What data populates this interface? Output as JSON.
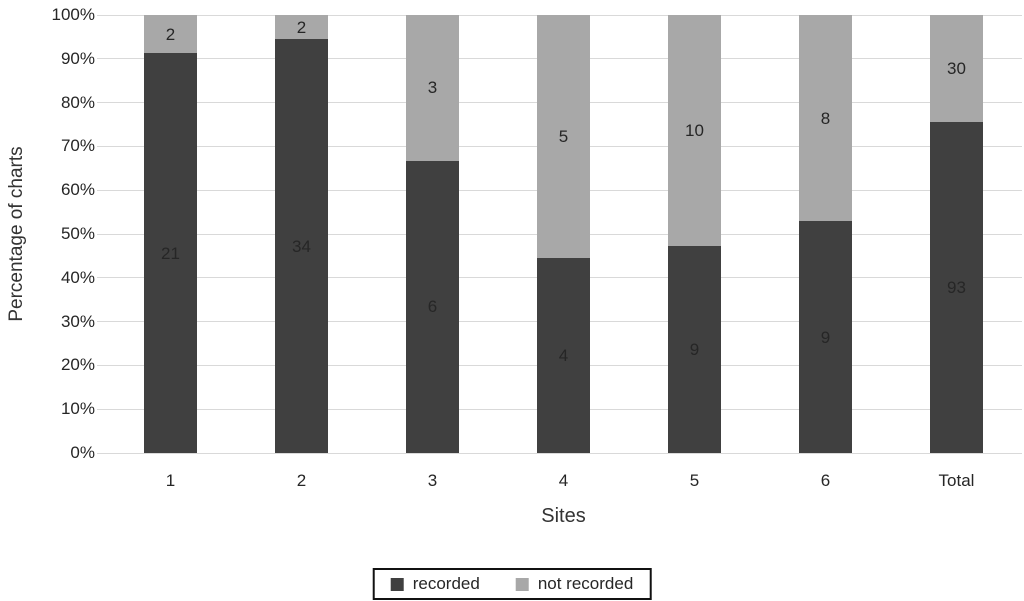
{
  "chart_data": {
    "type": "bar",
    "variant": "100% stacked column",
    "title": "",
    "xlabel": "Sites",
    "ylabel": "Percentage of charts",
    "categories": [
      "1",
      "2",
      "3",
      "4",
      "5",
      "6",
      "Total"
    ],
    "series": [
      {
        "name": "recorded",
        "color": "#404040",
        "values": [
          21,
          34,
          6,
          4,
          9,
          9,
          93
        ]
      },
      {
        "name": "not recorded",
        "color": "#a8a8a8",
        "values": [
          2,
          2,
          3,
          5,
          10,
          8,
          30
        ]
      }
    ],
    "recorded_percent": [
      91.3,
      94.4,
      66.7,
      44.4,
      47.4,
      52.9,
      75.6
    ],
    "ylim": [
      0,
      100
    ],
    "y_tick_labels": [
      "0%",
      "10%",
      "20%",
      "30%",
      "40%",
      "50%",
      "60%",
      "70%",
      "80%",
      "90%",
      "100%"
    ],
    "grid": true,
    "legend_position": "bottom center"
  },
  "colors": {
    "recorded": "#404040",
    "not_recorded": "#a8a8a8",
    "gridline": "#d9d9d9",
    "label_text": "#262626",
    "axis_text": "#333333",
    "legend_border": "#111111",
    "background": "#ffffff"
  }
}
